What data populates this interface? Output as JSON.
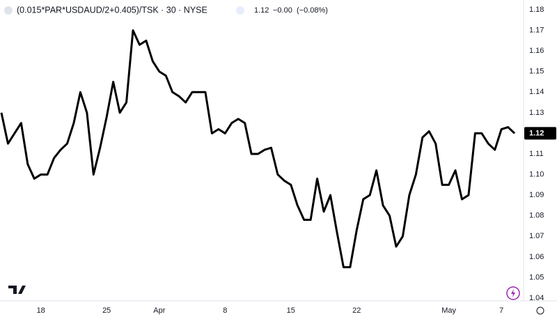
{
  "chart_data": {
    "type": "line",
    "title": "(0.015*PAR*USDAUD/2+0.405)/TSK · 30 · NYSE",
    "price": "1.12",
    "change": "−0.00",
    "change_pct": "(−0.08%)",
    "last_label": "1.12",
    "color": "#000000",
    "categories": [
      null,
      null,
      null,
      null,
      null,
      null,
      "18",
      null,
      null,
      null,
      null,
      null,
      null,
      null,
      null,
      null,
      "25",
      null,
      null,
      null,
      null,
      null,
      null,
      null,
      "Apr",
      null,
      null,
      null,
      null,
      null,
      null,
      null,
      null,
      null,
      "8",
      null,
      null,
      null,
      null,
      null,
      null,
      null,
      null,
      null,
      "15",
      null,
      null,
      null,
      null,
      null,
      null,
      null,
      null,
      null,
      "22",
      null,
      null,
      null,
      null,
      null,
      null,
      null,
      null,
      null,
      null,
      null,
      null,
      null,
      "May",
      null,
      null,
      null,
      null,
      null,
      null,
      null,
      "7",
      null,
      null
    ],
    "values": [
      1.13,
      1.115,
      1.12,
      1.125,
      1.105,
      1.098,
      1.1,
      1.1,
      1.108,
      1.112,
      1.115,
      1.125,
      1.14,
      1.13,
      1.1,
      1.113,
      1.128,
      1.145,
      1.13,
      1.135,
      1.17,
      1.163,
      1.165,
      1.155,
      1.15,
      1.148,
      1.14,
      1.138,
      1.135,
      1.14,
      1.14,
      1.14,
      1.12,
      1.122,
      1.12,
      1.125,
      1.127,
      1.125,
      1.11,
      1.11,
      1.112,
      1.113,
      1.1,
      1.097,
      1.095,
      1.085,
      1.078,
      1.078,
      1.098,
      1.082,
      1.09,
      1.072,
      1.055,
      1.055,
      1.073,
      1.088,
      1.09,
      1.102,
      1.085,
      1.08,
      1.065,
      1.07,
      1.09,
      1.1,
      1.118,
      1.121,
      1.115,
      1.095,
      1.095,
      1.102,
      1.088,
      1.09,
      1.12,
      1.12,
      1.115,
      1.112,
      1.122,
      1.123,
      1.12
    ],
    "ylim": [
      1.04,
      1.18
    ],
    "yticks": [
      1.04,
      1.05,
      1.06,
      1.07,
      1.08,
      1.09,
      {
        "value": 1.1,
        "label": "1.10"
      },
      1.11,
      1.12,
      1.13,
      1.14,
      1.15,
      1.16,
      1.17,
      1.18
    ],
    "grid": false
  }
}
